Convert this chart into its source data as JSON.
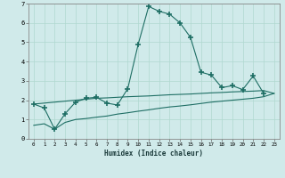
{
  "xlabel": "Humidex (Indice chaleur)",
  "x_values": [
    0,
    1,
    2,
    3,
    4,
    5,
    6,
    7,
    8,
    9,
    10,
    11,
    12,
    13,
    14,
    15,
    16,
    17,
    18,
    19,
    20,
    21,
    22,
    23
  ],
  "line1": [
    1.8,
    1.6,
    0.5,
    1.3,
    1.9,
    2.1,
    2.15,
    1.85,
    1.75,
    2.6,
    4.9,
    6.85,
    6.6,
    6.45,
    6.0,
    5.25,
    3.45,
    3.3,
    2.65,
    2.75,
    2.55,
    3.25,
    2.35,
    null
  ],
  "line2": [
    1.8,
    1.85,
    1.9,
    1.95,
    2.0,
    2.05,
    2.1,
    2.12,
    2.15,
    2.18,
    2.2,
    2.22,
    2.25,
    2.28,
    2.3,
    2.32,
    2.35,
    2.38,
    2.4,
    2.43,
    2.45,
    2.47,
    2.5,
    2.35
  ],
  "line3": [
    0.7,
    0.78,
    0.5,
    0.85,
    1.0,
    1.05,
    1.12,
    1.18,
    1.28,
    1.35,
    1.43,
    1.5,
    1.58,
    1.65,
    1.7,
    1.76,
    1.83,
    1.9,
    1.95,
    2.0,
    2.05,
    2.1,
    2.18,
    2.35
  ],
  "line_color": "#1e6e64",
  "bg_color": "#d0eaea",
  "grid_color": "#b0d8d0",
  "ylim": [
    0,
    7
  ],
  "xlim": [
    -0.5,
    23.5
  ],
  "yticks": [
    0,
    1,
    2,
    3,
    4,
    5,
    6,
    7
  ],
  "xticks": [
    0,
    1,
    2,
    3,
    4,
    5,
    6,
    7,
    8,
    9,
    10,
    11,
    12,
    13,
    14,
    15,
    16,
    17,
    18,
    19,
    20,
    21,
    22,
    23
  ]
}
